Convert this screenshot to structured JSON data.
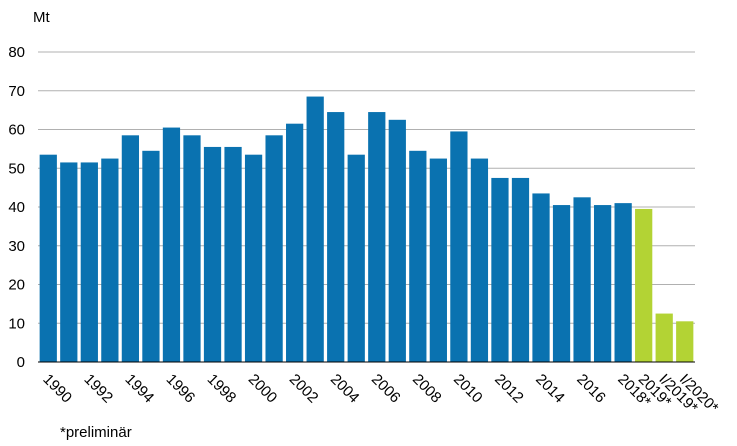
{
  "chart_data": {
    "type": "bar",
    "unit": "Mt",
    "note": "*preliminär",
    "categories": [
      "1990",
      null,
      "1992",
      null,
      "1994",
      null,
      "1996",
      null,
      "1998",
      null,
      "2000",
      null,
      "2002",
      null,
      "2004",
      null,
      "2006",
      null,
      "2008",
      null,
      "2010",
      null,
      "2012",
      null,
      "2014",
      null,
      "2016",
      null,
      "2018*",
      "2019*",
      "I/2019*",
      "I/2020*"
    ],
    "values": [
      53.5,
      51.5,
      51.5,
      52.5,
      58.5,
      54.5,
      60.5,
      58.5,
      55.5,
      55.5,
      53.5,
      58.5,
      61.5,
      68.5,
      64.5,
      53.5,
      64.5,
      62.5,
      54.5,
      52.5,
      59.5,
      52.5,
      47.5,
      47.5,
      43.5,
      40.5,
      42.5,
      40.5,
      41,
      39.5,
      12.5,
      10.5
    ],
    "colors": [
      "#0a72b0",
      "#0a72b0",
      "#0a72b0",
      "#0a72b0",
      "#0a72b0",
      "#0a72b0",
      "#0a72b0",
      "#0a72b0",
      "#0a72b0",
      "#0a72b0",
      "#0a72b0",
      "#0a72b0",
      "#0a72b0",
      "#0a72b0",
      "#0a72b0",
      "#0a72b0",
      "#0a72b0",
      "#0a72b0",
      "#0a72b0",
      "#0a72b0",
      "#0a72b0",
      "#0a72b0",
      "#0a72b0",
      "#0a72b0",
      "#0a72b0",
      "#0a72b0",
      "#0a72b0",
      "#0a72b0",
      "#0a72b0",
      "#b3d334",
      "#b3d334",
      "#b3d334"
    ],
    "ylim": [
      0,
      80
    ],
    "yticks": [
      0,
      10,
      20,
      30,
      40,
      50,
      60,
      70,
      80
    ],
    "grid": true
  }
}
